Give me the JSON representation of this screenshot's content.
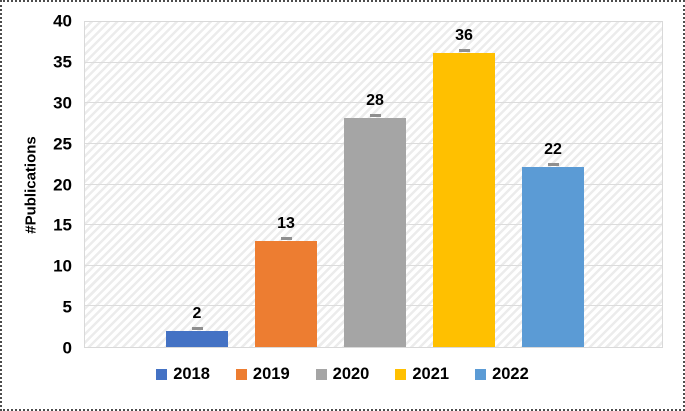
{
  "chart_data": {
    "type": "bar",
    "title": "",
    "categories": [
      "2018",
      "2019",
      "2020",
      "2021",
      "2022"
    ],
    "values": [
      2,
      13,
      28,
      36,
      22
    ],
    "data_labels": [
      "2",
      "13",
      "28",
      "36",
      "22"
    ],
    "colors": [
      "#4472C4",
      "#ED7D31",
      "#A5A5A5",
      "#FFC000",
      "#5B9BD5"
    ],
    "xlabel": "",
    "ylabel": "#Publications",
    "ylim": [
      0,
      40
    ],
    "yticks": [
      0,
      5,
      10,
      15,
      20,
      25,
      30,
      35,
      40
    ],
    "grid": true,
    "has_error_bars": true,
    "error_bar_color": "#8f8f8f",
    "legend_position": "bottom",
    "legend_items": [
      {
        "label": "2018",
        "color": "#4472C4"
      },
      {
        "label": "2019",
        "color": "#ED7D31"
      },
      {
        "label": "2020",
        "color": "#A5A5A5"
      },
      {
        "label": "2021",
        "color": "#FFC000"
      },
      {
        "label": "2022",
        "color": "#5B9BD5"
      }
    ]
  },
  "styles": {
    "gridline_color": "#dcdcdc",
    "plot_border_color": "#d9d9d9",
    "hatch_color": "#ececec",
    "text_color": "#000000",
    "frame_border_color": "#4d4d4d",
    "background_color": "#ffffff"
  }
}
